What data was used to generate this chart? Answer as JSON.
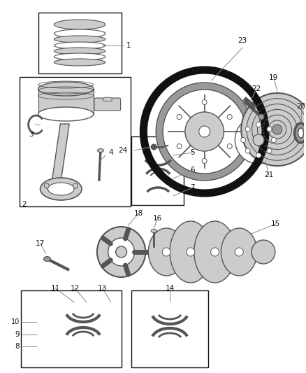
{
  "background_color": "#ffffff",
  "line_color": "#000000",
  "gray": "#888888",
  "dgray": "#555555",
  "lgray": "#cccccc",
  "mgray": "#aaaaaa"
}
